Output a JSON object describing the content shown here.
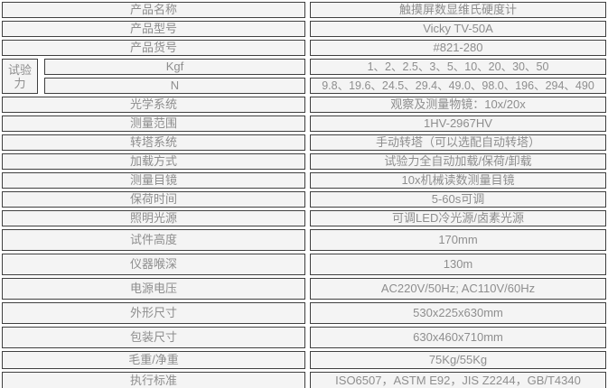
{
  "theme": {
    "page_background": "#ffffff",
    "cell_background": "#f4f4f4",
    "border_color": "#3f3f3f",
    "text_color": "#8e8e8e"
  },
  "table": {
    "rows": [
      {
        "label": "产品名称",
        "value": "触摸屏数显维氏硬度计"
      },
      {
        "label": "产品型号",
        "value": "Vicky TV-50A"
      },
      {
        "label": "产品货号",
        "value": "#821-280"
      },
      {
        "label": "光学系统",
        "value": "观察及测量物镜：10x/20x"
      },
      {
        "label": "测量范围",
        "value": "1HV-2967HV"
      },
      {
        "label": "转塔系统",
        "value": "手动转塔（可以选配自动转塔）"
      },
      {
        "label": "加载方式",
        "value": "试验力全自动加载/保荷/卸载"
      },
      {
        "label": "测量目镜",
        "value": "10x机械读数测量目镜"
      },
      {
        "label": "保荷时间",
        "value": "5-60s可调"
      },
      {
        "label": "照明光源",
        "value": "可调LED冷光源/卤素光源"
      },
      {
        "label": "试件高度",
        "value": "170mm"
      },
      {
        "label": "仪器喉深",
        "value": "130m"
      },
      {
        "label": "电源电压",
        "value": "AC220V/50Hz; AC110V/60Hz"
      },
      {
        "label": "外形尺寸",
        "value": "530x225x630mm"
      },
      {
        "label": "包装尺寸",
        "value": "630x460x710mm"
      },
      {
        "label": "毛重/净重",
        "value": "75Kg/55Kg"
      },
      {
        "label": "执行标准",
        "value": "ISO6507，ASTM E92，JIS Z2244，GB/T4340"
      }
    ],
    "force_group": {
      "label": "试验力",
      "sub_rows": [
        {
          "unit": "Kgf",
          "value": "1、2、2.5、3、5、10、20、30、50"
        },
        {
          "unit": "N",
          "value": "9.8、19.6、24.5、29.4、49.0、98.0、196、294、490"
        }
      ]
    }
  }
}
